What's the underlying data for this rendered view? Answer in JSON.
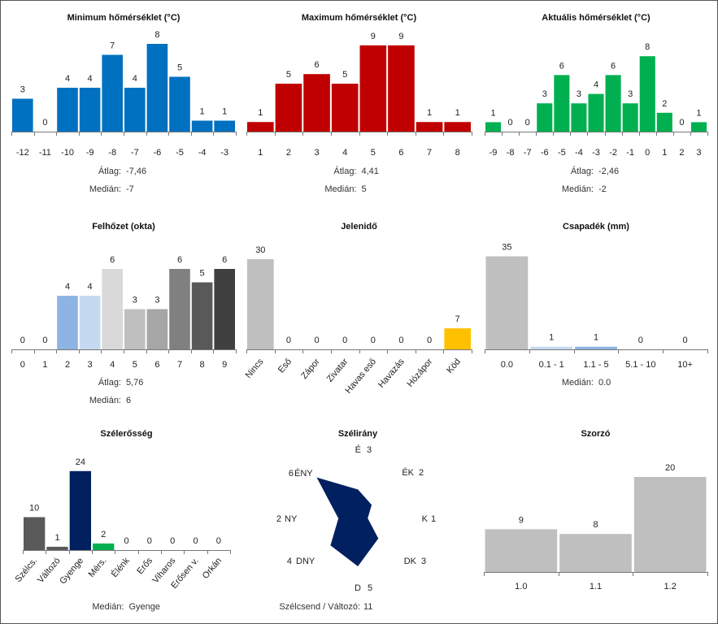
{
  "chart_data": [
    {
      "id": "min",
      "type": "bar",
      "title": "Minimum hőmérséklet (°C)",
      "categories": [
        "-12",
        "-11",
        "-10",
        "-9",
        "-8",
        "-7",
        "-6",
        "-5",
        "-4",
        "-3"
      ],
      "values": [
        3,
        0,
        4,
        4,
        7,
        4,
        8,
        5,
        1,
        1
      ],
      "color": "#0070C0",
      "stats": [
        {
          "label": "Átlag:",
          "value": "-7,46"
        },
        {
          "label": "Medián:",
          "value": "-7"
        }
      ]
    },
    {
      "id": "max",
      "type": "bar",
      "title": "Maximum hőmérséklet (°C)",
      "categories": [
        "1",
        "2",
        "3",
        "4",
        "5",
        "6",
        "7",
        "8"
      ],
      "values": [
        1,
        5,
        6,
        5,
        9,
        9,
        1,
        1
      ],
      "color": "#C00000",
      "stats": [
        {
          "label": "Átlag:",
          "value": "4,41"
        },
        {
          "label": "Medián:",
          "value": "5"
        }
      ]
    },
    {
      "id": "akt",
      "type": "bar",
      "title": "Aktuális hőmérséklet (°C)",
      "categories": [
        "-9",
        "-8",
        "-7",
        "-6",
        "-5",
        "-4",
        "-3",
        "-2",
        "-1",
        "0",
        "1",
        "2",
        "3"
      ],
      "values": [
        1,
        0,
        0,
        3,
        6,
        3,
        4,
        6,
        3,
        8,
        2,
        0,
        1
      ],
      "color": "#00B050",
      "stats": [
        {
          "label": "Átlag:",
          "value": "-2,46"
        },
        {
          "label": "Medián:",
          "value": "-2"
        }
      ]
    },
    {
      "id": "felho",
      "type": "bar",
      "title": "Felhőzet (okta)",
      "categories": [
        "0",
        "1",
        "2",
        "3",
        "4",
        "5",
        "6",
        "7",
        "8",
        "9"
      ],
      "values": [
        0,
        0,
        4,
        4,
        6,
        3,
        3,
        6,
        5,
        6
      ],
      "colors": [
        "#8EB4E3",
        "#8EB4E3",
        "#8EB4E3",
        "#C5D9F1",
        "#D9D9D9",
        "#BFBFBF",
        "#A6A6A6",
        "#808080",
        "#595959",
        "#404040"
      ],
      "stats": [
        {
          "label": "Átlag:",
          "value": "5,76"
        },
        {
          "label": "Medián:",
          "value": "6"
        }
      ]
    },
    {
      "id": "jelen",
      "type": "bar",
      "title": "Jelenidő",
      "categories": [
        "Nincs",
        "Eső",
        "Zápor",
        "Zivatar",
        "Havas eső",
        "Havazás",
        "Hózápor",
        "Köd"
      ],
      "values": [
        30,
        0,
        0,
        0,
        0,
        0,
        0,
        7
      ],
      "colors": [
        "#BFBFBF",
        "#BFBFBF",
        "#BFBFBF",
        "#BFBFBF",
        "#BFBFBF",
        "#BFBFBF",
        "#BFBFBF",
        "#FFC000"
      ],
      "stats": []
    },
    {
      "id": "csap",
      "type": "bar",
      "title": "Csapadék (mm)",
      "categories": [
        "0.0",
        "0.1 - 1",
        "1.1 - 5",
        "5.1 - 10",
        "10+"
      ],
      "values": [
        35,
        1,
        1,
        0,
        0
      ],
      "colors": [
        "#BFBFBF",
        "#C5D9F1",
        "#8EB4E3",
        "#8EB4E3",
        "#8EB4E3"
      ],
      "stats": [
        {
          "label": "Medián:",
          "value": "0.0"
        }
      ]
    },
    {
      "id": "szel",
      "type": "bar",
      "title": "Szélerősség",
      "categories": [
        "Szélcs.",
        "Változó",
        "Gyenge",
        "Mérs.",
        "Élénk",
        "Erős",
        "Viharos",
        "Erősen v.",
        "Orkán"
      ],
      "values": [
        10,
        1,
        24,
        2,
        0,
        0,
        0,
        0,
        0
      ],
      "colors": [
        "#595959",
        "#595959",
        "#002060",
        "#00B050",
        "#00B050",
        "#00B050",
        "#00B050",
        "#00B050",
        "#00B050"
      ],
      "stats": [
        {
          "label": "Medián:",
          "value": "Gyenge"
        }
      ]
    },
    {
      "id": "irany",
      "type": "radar",
      "title": "Szélirány",
      "directions": [
        {
          "name": "É",
          "value": 3
        },
        {
          "name": "ÉK",
          "value": 2
        },
        {
          "name": "K",
          "value": 1
        },
        {
          "name": "DK",
          "value": 3
        },
        {
          "name": "D",
          "value": 5
        },
        {
          "name": "DNY",
          "value": 4
        },
        {
          "name": "NY",
          "value": 2
        },
        {
          "name": "ÉNY",
          "value": 6
        }
      ],
      "max": 6,
      "color": "#002060",
      "footer": {
        "label": "Szélcsend / Változó:",
        "value": "11"
      }
    },
    {
      "id": "szorzo",
      "type": "bar",
      "title": "Szorzó",
      "categories": [
        "1.0",
        "1.1",
        "1.2"
      ],
      "values": [
        9,
        8,
        20
      ],
      "color": "#BFBFBF",
      "stats": []
    }
  ]
}
